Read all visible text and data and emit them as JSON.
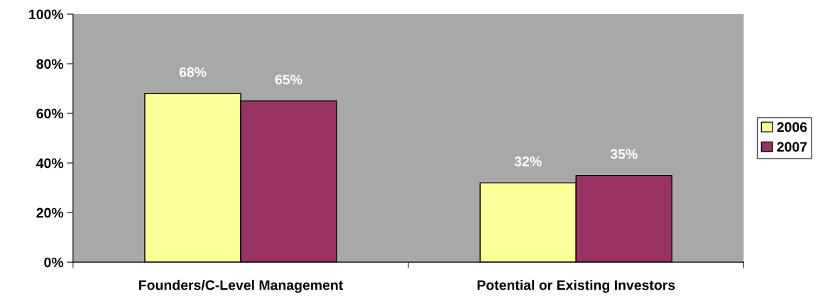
{
  "chart_data": {
    "type": "bar",
    "categories": [
      "Founders/C-Level Management",
      "Potential or Existing Investors"
    ],
    "series": [
      {
        "name": "2006",
        "color": "#ffff99",
        "values": [
          68,
          32
        ]
      },
      {
        "name": "2007",
        "color": "#993366",
        "values": [
          65,
          35
        ]
      }
    ],
    "ylim": [
      0,
      100
    ],
    "yticks": [
      {
        "value": 0,
        "label": "0%"
      },
      {
        "value": 20,
        "label": "20%"
      },
      {
        "value": 40,
        "label": "40%"
      },
      {
        "value": 60,
        "label": "60%"
      },
      {
        "value": 80,
        "label": "80%"
      },
      {
        "value": 100,
        "label": "100%"
      }
    ],
    "value_labels": [
      [
        "68%",
        "32%"
      ],
      [
        "65%",
        "35%"
      ]
    ],
    "legend": "right",
    "grid": false
  }
}
